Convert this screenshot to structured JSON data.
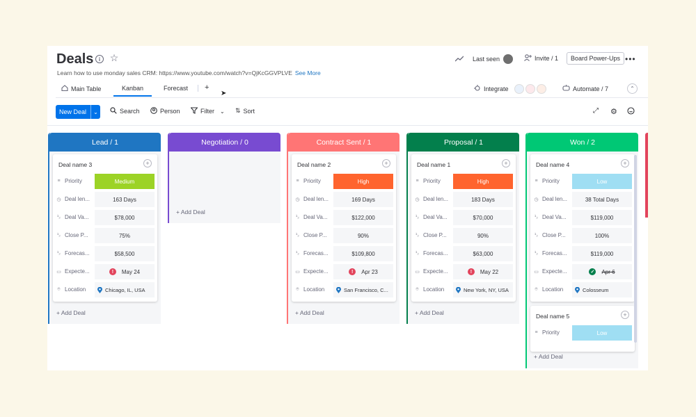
{
  "header": {
    "title": "Deals",
    "description": "Learn how to use monday sales CRM: https://www.youtube.com/watch?v=QjKcGGVPLVE",
    "see_more": "See More",
    "last_seen": "Last seen",
    "invite": "Invite / 1",
    "power_ups": "Board Power-Ups"
  },
  "tabs": [
    {
      "label": "Main Table"
    },
    {
      "label": "Kanban"
    },
    {
      "label": "Forecast"
    }
  ],
  "integrate": "Integrate",
  "automate": "Automate / 7",
  "toolbar": {
    "new_deal": "New Deal",
    "search": "Search",
    "person": "Person",
    "filter": "Filter",
    "sort": "Sort"
  },
  "add_deal": "+ Add Deal",
  "field_labels": [
    "Priority",
    "Deal len...",
    "Deal Va...",
    "Close P...",
    "Forecas...",
    "Expecte...",
    "Location"
  ],
  "columns": [
    {
      "title": "Lead / 1",
      "color": "#1f76c2",
      "cards": [
        {
          "name": "Deal name 3",
          "priority": "Medium",
          "priority_color": "#9cd326",
          "length": "163 Days",
          "value": "$78,000",
          "close": "75%",
          "forecast": "$58,500",
          "expected": "May 24",
          "expected_status": "alert",
          "location": "Chicago, IL, USA"
        }
      ]
    },
    {
      "title": "Negotiation / 0",
      "color": "#784bd1",
      "cards": []
    },
    {
      "title": "Contract Sent / 1",
      "color": "#ff7575",
      "cards": [
        {
          "name": "Deal name 2",
          "priority": "High",
          "priority_color": "#ff642e",
          "length": "169 Days",
          "value": "$122,000",
          "close": "90%",
          "forecast": "$109,800",
          "expected": "Apr 23",
          "expected_status": "alert",
          "location": "San Francisco, C..."
        }
      ]
    },
    {
      "title": "Proposal / 1",
      "color": "#037f4c",
      "cards": [
        {
          "name": "Deal name 1",
          "priority": "High",
          "priority_color": "#ff642e",
          "length": "183 Days",
          "value": "$70,000",
          "close": "90%",
          "forecast": "$63,000",
          "expected": "May 22",
          "expected_status": "alert",
          "location": "New York, NY, USA"
        }
      ]
    },
    {
      "title": "Won / 2",
      "color": "#00c875",
      "cards": [
        {
          "name": "Deal name 4",
          "priority": "Low",
          "priority_color": "#9fdef3",
          "length": "38 Total Days",
          "value": "$119,000",
          "close": "100%",
          "forecast": "$119,000",
          "expected": "Apr 6",
          "expected_status": "done",
          "location": "Colosseum"
        },
        {
          "name": "Deal name 5",
          "priority": "Low",
          "priority_color": "#9fdef3"
        }
      ]
    }
  ]
}
